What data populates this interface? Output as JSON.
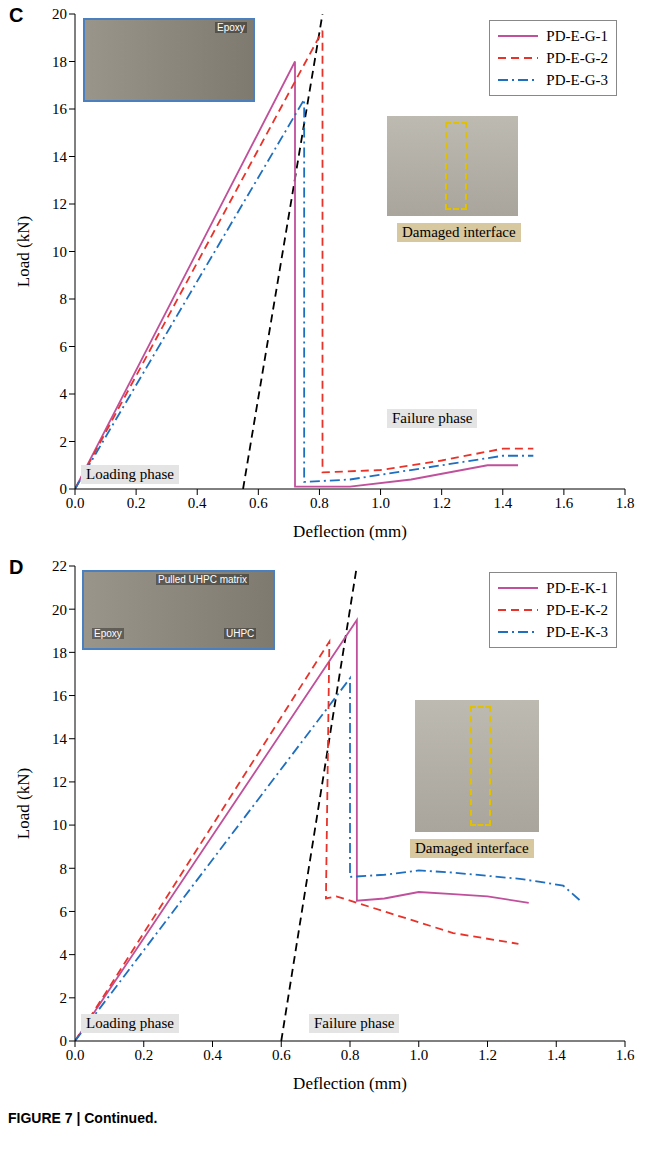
{
  "caption": "FIGURE 7 | Continued.",
  "chart_data": [
    {
      "panel": "C",
      "type": "line",
      "x_label": "Deflection (mm)",
      "y_label": "Load (kN)",
      "xlim": [
        0,
        1.8
      ],
      "xticks": [
        {
          "value": 0,
          "label": "0.0"
        },
        0.2,
        0.4,
        0.6,
        0.8,
        {
          "value": 1,
          "label": "1.0"
        },
        1.2,
        1.4,
        1.6,
        1.8
      ],
      "ylim": [
        0,
        20
      ],
      "yticks": [
        0,
        2,
        4,
        6,
        8,
        10,
        12,
        14,
        16,
        18,
        20
      ],
      "grid": false,
      "legend": "upper right",
      "annotations": [
        "Loading phase",
        "Failure phase",
        "Damaged interface"
      ],
      "photo_labels": [
        "Epoxy"
      ],
      "reference_line": {
        "color": "#000000",
        "line_style": "dashed",
        "x": [
          0.55,
          0.81
        ],
        "values": [
          0,
          20
        ]
      },
      "series": [
        {
          "name": "PD-E-G-1",
          "color": "#c0509b",
          "line_style": "solid",
          "x": [
            0,
            0.72,
            0.72,
            0.9,
            1.1,
            1.35,
            1.45
          ],
          "values": [
            0,
            18,
            0.1,
            0.1,
            0.4,
            1.0,
            1.0
          ]
        },
        {
          "name": "PD-E-G-2",
          "color": "#e8332a",
          "line_style": "dashed",
          "x": [
            0,
            0.81,
            0.81,
            1.0,
            1.2,
            1.4,
            1.5
          ],
          "values": [
            0,
            19.3,
            0.7,
            0.8,
            1.2,
            1.7,
            1.7
          ]
        },
        {
          "name": "PD-E-G-3",
          "color": "#1f6fbf",
          "line_style": "dashdot",
          "x": [
            0,
            0.75,
            0.75,
            0.9,
            1.2,
            1.4,
            1.5
          ],
          "values": [
            0,
            16.4,
            0.3,
            0.4,
            1.0,
            1.4,
            1.4
          ]
        }
      ]
    },
    {
      "panel": "D",
      "type": "line",
      "x_label": "Deflection (mm)",
      "y_label": "Load (kN)",
      "xlim": [
        0,
        1.6
      ],
      "xticks": [
        {
          "value": 0,
          "label": "0.0"
        },
        0.2,
        0.4,
        0.6,
        0.8,
        {
          "value": 1,
          "label": "1.0"
        },
        1.2,
        1.4,
        1.6
      ],
      "ylim": [
        0,
        22
      ],
      "yticks": [
        0,
        2,
        4,
        6,
        8,
        10,
        12,
        14,
        16,
        18,
        20,
        22
      ],
      "grid": false,
      "legend": "upper right",
      "annotations": [
        "Loading phase",
        "Failure phase",
        "Damaged interface"
      ],
      "photo_labels": [
        "Pulled UHPC matrix",
        "Epoxy",
        "UHPC"
      ],
      "reference_line": {
        "color": "#000000",
        "line_style": "dashed",
        "x": [
          0.6,
          0.82
        ],
        "values": [
          0,
          22
        ]
      },
      "series": [
        {
          "name": "PD-E-K-1",
          "color": "#c0509b",
          "line_style": "solid",
          "x": [
            0,
            0.82,
            0.82,
            0.9,
            1.0,
            1.1,
            1.2,
            1.32
          ],
          "values": [
            0,
            19.5,
            6.5,
            6.6,
            6.9,
            6.8,
            6.7,
            6.4
          ]
        },
        {
          "name": "PD-E-K-2",
          "color": "#e8332a",
          "line_style": "dashed",
          "x": [
            0,
            0.74,
            0.73,
            0.76,
            0.9,
            1.0,
            1.1,
            1.29
          ],
          "values": [
            0,
            18.5,
            6.6,
            6.7,
            6.0,
            5.5,
            5.0,
            4.5
          ]
        },
        {
          "name": "PD-E-K-3",
          "color": "#1f6fbf",
          "line_style": "dashdot",
          "x": [
            0,
            0.8,
            0.8,
            0.9,
            1.0,
            1.1,
            1.3,
            1.42,
            1.47
          ],
          "values": [
            0,
            16.8,
            7.6,
            7.7,
            7.9,
            7.8,
            7.5,
            7.2,
            6.5
          ]
        }
      ]
    }
  ]
}
